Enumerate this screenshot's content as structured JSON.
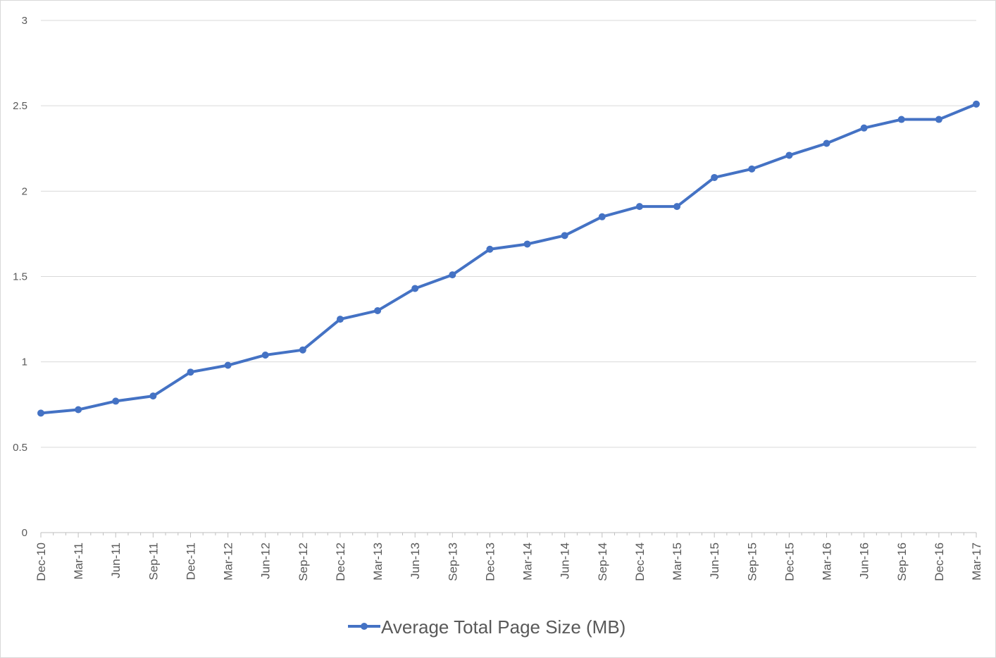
{
  "chart_data": {
    "type": "line",
    "title": "",
    "xlabel": "",
    "ylabel": "",
    "ylim": [
      0,
      3
    ],
    "yticks": [
      "0",
      "0.5",
      "1",
      "1.5",
      "2",
      "2.5",
      "3"
    ],
    "grid": true,
    "legend_position": "bottom",
    "colors": {
      "series": "#4472c4",
      "grid": "#d9d9d9",
      "text": "#595959"
    },
    "categories": [
      "Dec-10",
      "Mar-11",
      "Jun-11",
      "Sep-11",
      "Dec-11",
      "Mar-12",
      "Jun-12",
      "Sep-12",
      "Dec-12",
      "Mar-13",
      "Jun-13",
      "Sep-13",
      "Dec-13",
      "Mar-14",
      "Jun-14",
      "Sep-14",
      "Dec-14",
      "Mar-15",
      "Jun-15",
      "Sep-15",
      "Dec-15",
      "Mar-16",
      "Jun-16",
      "Sep-16",
      "Dec-16",
      "Mar-17"
    ],
    "series": [
      {
        "name": "Average Total Page Size (MB)",
        "values": [
          0.7,
          0.72,
          0.77,
          0.8,
          0.94,
          0.98,
          1.04,
          1.07,
          1.25,
          1.3,
          1.43,
          1.51,
          1.66,
          1.69,
          1.74,
          1.85,
          1.91,
          1.91,
          2.08,
          2.13,
          2.21,
          2.28,
          2.37,
          2.42,
          2.42,
          2.51
        ]
      }
    ]
  }
}
